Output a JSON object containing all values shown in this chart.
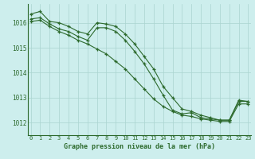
{
  "x": [
    0,
    1,
    2,
    3,
    4,
    5,
    6,
    7,
    8,
    9,
    10,
    11,
    12,
    13,
    14,
    15,
    16,
    17,
    18,
    19,
    20,
    21,
    22,
    23
  ],
  "line1": [
    1016.35,
    1016.45,
    1016.05,
    1016.0,
    1015.85,
    1015.65,
    1015.55,
    1016.0,
    1015.95,
    1015.85,
    1015.55,
    1015.15,
    1014.65,
    1014.15,
    1013.45,
    1013.0,
    1012.55,
    1012.45,
    1012.3,
    1012.2,
    1012.1,
    1012.1,
    1012.9,
    1012.85
  ],
  "line2": [
    1016.15,
    1016.2,
    1015.95,
    1015.75,
    1015.65,
    1015.45,
    1015.3,
    1015.8,
    1015.8,
    1015.65,
    1015.3,
    1014.85,
    1014.35,
    1013.75,
    1013.1,
    1012.5,
    1012.35,
    1012.4,
    1012.2,
    1012.15,
    1012.1,
    1012.1,
    1012.85,
    1012.85
  ],
  "line3": [
    1016.05,
    1016.1,
    1015.85,
    1015.65,
    1015.5,
    1015.3,
    1015.15,
    1014.95,
    1014.75,
    1014.45,
    1014.15,
    1013.75,
    1013.35,
    1012.95,
    1012.65,
    1012.45,
    1012.3,
    1012.25,
    1012.15,
    1012.1,
    1012.05,
    1012.05,
    1012.75,
    1012.75
  ],
  "line_color": "#2d6a2d",
  "bg_color": "#cdeeed",
  "grid_color": "#aad4d0",
  "xlabel": "Graphe pression niveau de la mer (hPa)",
  "ylim": [
    1011.5,
    1016.75
  ],
  "yticks": [
    1012,
    1013,
    1014,
    1015,
    1016
  ],
  "xticks": [
    0,
    1,
    2,
    3,
    4,
    5,
    6,
    7,
    8,
    9,
    10,
    11,
    12,
    13,
    14,
    15,
    16,
    17,
    18,
    19,
    20,
    21,
    22,
    23
  ]
}
